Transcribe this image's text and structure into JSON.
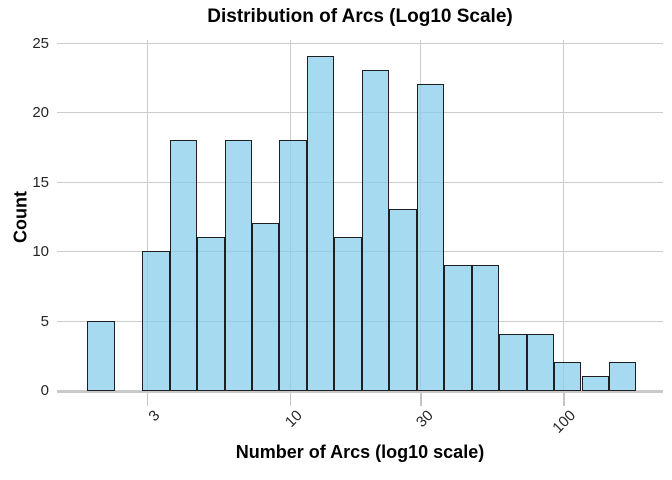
{
  "figure": {
    "title": "Distribution of Arcs (Log10 Scale)"
  },
  "chart_data": {
    "type": "bar",
    "subtype": "histogram",
    "title": "Distribution of Arcs (Log10 Scale)",
    "xlabel": "Number of Arcs (log10 scale)",
    "ylabel": "Count",
    "x_scale": "log10",
    "grid": true,
    "legend": null,
    "x_tick_labels": [
      "3",
      "10",
      "30",
      "100"
    ],
    "x_tick_values": [
      3,
      10,
      30,
      100
    ],
    "y_tick_values": [
      0,
      5,
      10,
      15,
      20,
      25
    ],
    "ylim": [
      0,
      25.3
    ],
    "bins": {
      "n_bins": 20,
      "start_log10": 0.259,
      "width_log10": 0.1004
    },
    "bin_edges_approx": [
      1.8,
      2.3,
      2.9,
      3.6,
      4.6,
      5.8,
      7.3,
      9.2,
      11.6,
      14.6,
      18.4,
      23.2,
      29.2,
      36.8,
      46.4,
      58.5,
      73.7,
      92.9,
      117,
      147,
      186
    ],
    "counts": [
      5,
      0,
      10,
      18,
      11,
      18,
      12,
      18,
      24,
      11,
      23,
      13,
      22,
      9,
      9,
      4,
      4,
      2,
      1,
      2
    ],
    "colors": {
      "bar_fill": "#87CEEB",
      "bar_fill_alpha": 0.75,
      "bar_edge": "#1f1f1f",
      "grid": "#cccccc",
      "spine": "#c9c9c9",
      "tick_mark": "#c4c4c4",
      "tick_text": "#262626",
      "label_text": "#000000"
    }
  }
}
